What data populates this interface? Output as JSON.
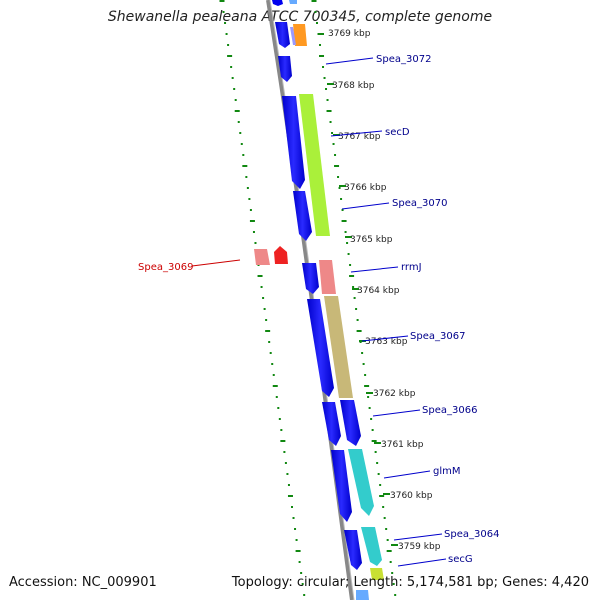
{
  "title": "Shewanella pealeana ATCC 700345, complete genome",
  "footer": {
    "accession": "Accession: NC_009901",
    "topology": "Topology: circular; Length: 5,174,581 bp; Genes: 4,420"
  },
  "ticks": [
    "3769 kbp",
    "3768 kbp",
    "3767 kbp",
    "3766 kbp",
    "3765 kbp",
    "3764 kbp",
    "3763 kbp",
    "3762 kbp",
    "3761 kbp",
    "3760 kbp",
    "3759 kbp"
  ],
  "gene_labels": [
    "Spea_3072",
    "secD",
    "Spea_3070",
    "Spea_3069",
    "rrmJ",
    "Spea_3067",
    "Spea_3066",
    "glmM",
    "Spea_3064",
    "secG"
  ],
  "colors": {
    "cds_blue": "#0000ee",
    "secD": "#aaf03a",
    "rrmJ": "#ee8888",
    "Spea_3067": "#c8b878",
    "glmM": "#33cccc",
    "orange": "#ff9922",
    "Spea_3069": "#ee2222",
    "label_forward": "#00008b",
    "label_reverse": "#cc0000",
    "tick_green": "#118811"
  }
}
